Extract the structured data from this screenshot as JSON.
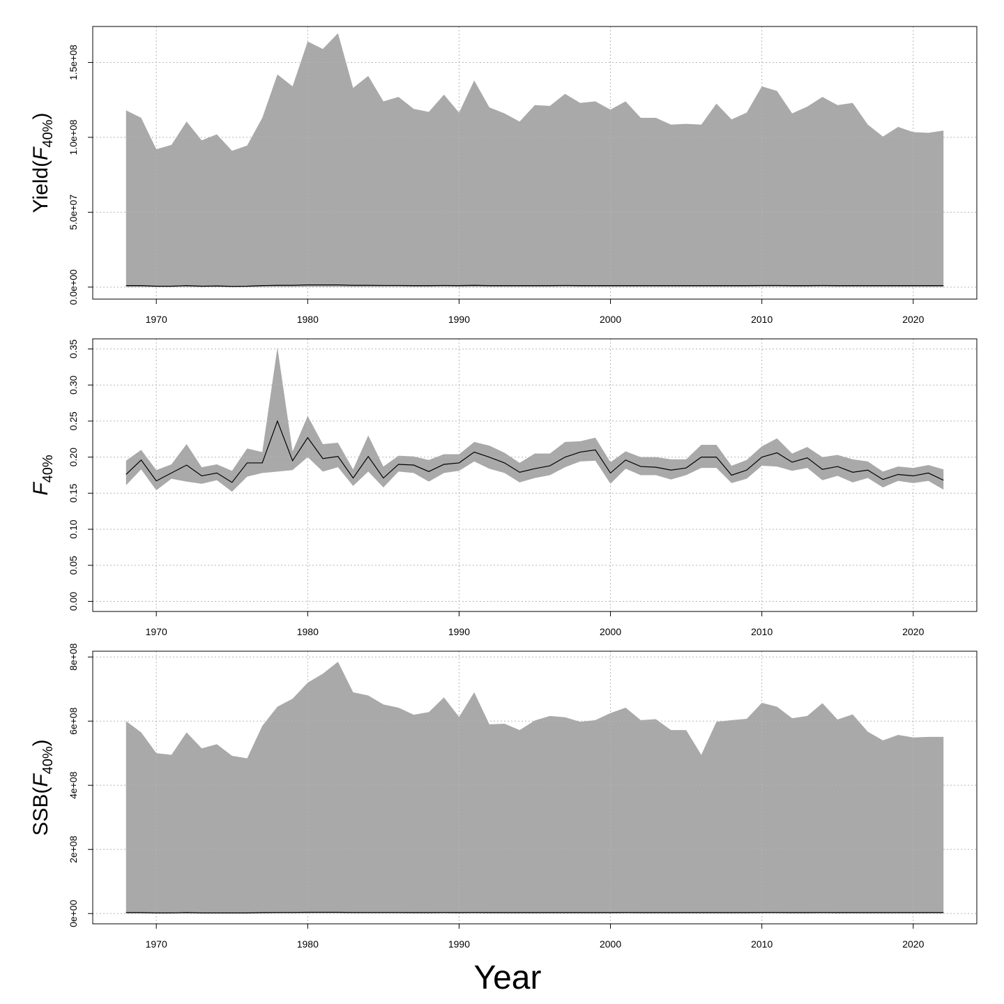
{
  "xlabel": "Year",
  "colors": {
    "band": "#a9a9a9",
    "line": "#000000",
    "grid": "#b5b5b5",
    "frame": "#000000"
  },
  "panels": [
    {
      "ylabel": {
        "prefix": "Yield(",
        "var": "F",
        "sub": "40%",
        "suffix": ")"
      },
      "ylim": [
        -8000000,
        174000000
      ],
      "yticks": [
        0,
        50000000,
        100000000,
        150000000
      ],
      "ytick_labels": [
        "0.0e+00",
        "5.0e+07",
        "1.0e+08",
        "1.5e+08"
      ]
    },
    {
      "ylabel": {
        "prefix": "",
        "var": "F",
        "sub": "40%",
        "suffix": ""
      },
      "ylim": [
        -0.014,
        0.364
      ],
      "yticks": [
        0,
        0.05,
        0.1,
        0.15,
        0.2,
        0.25,
        0.3,
        0.35
      ],
      "ytick_labels": [
        "0.00",
        "0.05",
        "0.10",
        "0.15",
        "0.20",
        "0.25",
        "0.30",
        "0.35"
      ]
    },
    {
      "ylabel": {
        "prefix": "SSB(",
        "var": "F",
        "sub": "40%",
        "suffix": ")"
      },
      "ylim": [
        -32000000,
        818000000
      ],
      "yticks": [
        0,
        200000000,
        400000000,
        600000000,
        800000000
      ],
      "ytick_labels": [
        "0e+00",
        "2e+08",
        "4e+08",
        "6e+08",
        "8e+08"
      ]
    }
  ],
  "xticks": [
    1970,
    1980,
    1990,
    2000,
    2010,
    2020
  ],
  "xtick_labels": [
    "1970",
    "1980",
    "1990",
    "2000",
    "2010",
    "2020"
  ],
  "chart_data": [
    {
      "type": "area",
      "x": [
        1968,
        1969,
        1970,
        1971,
        1972,
        1973,
        1974,
        1975,
        1976,
        1977,
        1978,
        1979,
        1980,
        1981,
        1982,
        1983,
        1984,
        1985,
        1986,
        1987,
        1988,
        1989,
        1990,
        1991,
        1992,
        1993,
        1994,
        1995,
        1996,
        1997,
        1998,
        1999,
        2000,
        2001,
        2002,
        2003,
        2004,
        2005,
        2006,
        2007,
        2008,
        2009,
        2010,
        2011,
        2012,
        2013,
        2014,
        2015,
        2016,
        2017,
        2018,
        2019,
        2020,
        2021,
        2022
      ],
      "xlim": [
        1965.8,
        2024.2
      ],
      "ylim": [
        -8000000,
        174000000
      ],
      "grid": true,
      "series": [
        {
          "role": "upper",
          "values": [
            118000000,
            113000000,
            92000000,
            95000000,
            110500000,
            98000000,
            102000000,
            91000000,
            94500000,
            113000000,
            142000000,
            134000000,
            164000000,
            159000000,
            169500000,
            133000000,
            141000000,
            124000000,
            127000000,
            119000000,
            117000000,
            128500000,
            116500000,
            138000000,
            120000000,
            116000000,
            110500000,
            121500000,
            121000000,
            129000000,
            123000000,
            124000000,
            118500000,
            124000000,
            113000000,
            113000000,
            108500000,
            109000000,
            108500000,
            122500000,
            112000000,
            116500000,
            134000000,
            131000000,
            116000000,
            120500000,
            127000000,
            121500000,
            123000000,
            108500000,
            100500000,
            107000000,
            103500000,
            103000000,
            104500000
          ]
        },
        {
          "role": "median",
          "values": [
            1000000,
            1000000,
            600000,
            600000,
            1000000,
            600000,
            800000,
            500000,
            600000,
            1000000,
            1200000,
            1200000,
            1500000,
            1500000,
            1500000,
            1200000,
            1200000,
            1100000,
            1100000,
            1000000,
            1000000,
            1100000,
            1000000,
            1200000,
            1000000,
            1000000,
            1000000,
            1000000,
            1000000,
            1100000,
            1000000,
            1000000,
            1000000,
            1000000,
            1000000,
            1000000,
            1000000,
            1000000,
            1000000,
            1000000,
            1000000,
            1000000,
            1100000,
            1100000,
            1000000,
            1000000,
            1100000,
            1000000,
            1000000,
            1000000,
            1000000,
            1000000,
            1000000,
            1000000,
            1000000
          ]
        },
        {
          "role": "lower",
          "values": [
            100000,
            100000,
            50000,
            50000,
            100000,
            50000,
            80000,
            30000,
            50000,
            100000,
            150000,
            150000,
            250000,
            250000,
            250000,
            150000,
            150000,
            150000,
            150000,
            100000,
            100000,
            150000,
            100000,
            150000,
            100000,
            100000,
            100000,
            100000,
            100000,
            150000,
            100000,
            100000,
            100000,
            100000,
            100000,
            100000,
            100000,
            100000,
            100000,
            100000,
            100000,
            100000,
            150000,
            150000,
            100000,
            100000,
            150000,
            100000,
            100000,
            100000,
            100000,
            100000,
            100000,
            100000,
            100000
          ]
        }
      ]
    },
    {
      "type": "area",
      "x": [
        1968,
        1969,
        1970,
        1971,
        1972,
        1973,
        1974,
        1975,
        1976,
        1977,
        1978,
        1979,
        1980,
        1981,
        1982,
        1983,
        1984,
        1985,
        1986,
        1987,
        1988,
        1989,
        1990,
        1991,
        1992,
        1993,
        1994,
        1995,
        1996,
        1997,
        1998,
        1999,
        2000,
        2001,
        2002,
        2003,
        2004,
        2005,
        2006,
        2007,
        2008,
        2009,
        2010,
        2011,
        2012,
        2013,
        2014,
        2015,
        2016,
        2017,
        2018,
        2019,
        2020,
        2021,
        2022
      ],
      "xlim": [
        1965.8,
        2024.2
      ],
      "ylim": [
        -0.014,
        0.364
      ],
      "grid": true,
      "series": [
        {
          "role": "upper",
          "values": [
            0.195,
            0.21,
            0.182,
            0.19,
            0.218,
            0.186,
            0.19,
            0.181,
            0.212,
            0.207,
            0.352,
            0.208,
            0.257,
            0.218,
            0.22,
            0.183,
            0.23,
            0.187,
            0.202,
            0.201,
            0.196,
            0.204,
            0.204,
            0.221,
            0.216,
            0.206,
            0.192,
            0.205,
            0.205,
            0.221,
            0.222,
            0.227,
            0.193,
            0.208,
            0.2,
            0.2,
            0.197,
            0.197,
            0.217,
            0.217,
            0.188,
            0.196,
            0.215,
            0.226,
            0.205,
            0.214,
            0.2,
            0.203,
            0.197,
            0.194,
            0.18,
            0.187,
            0.185,
            0.189,
            0.183
          ]
        },
        {
          "role": "median",
          "values": [
            0.176,
            0.196,
            0.167,
            0.178,
            0.189,
            0.174,
            0.178,
            0.165,
            0.192,
            0.192,
            0.25,
            0.195,
            0.227,
            0.198,
            0.201,
            0.171,
            0.201,
            0.171,
            0.19,
            0.189,
            0.18,
            0.19,
            0.192,
            0.207,
            0.2,
            0.192,
            0.179,
            0.184,
            0.188,
            0.2,
            0.207,
            0.21,
            0.178,
            0.196,
            0.187,
            0.186,
            0.182,
            0.185,
            0.2,
            0.2,
            0.175,
            0.182,
            0.2,
            0.206,
            0.193,
            0.199,
            0.183,
            0.187,
            0.179,
            0.182,
            0.169,
            0.176,
            0.174,
            0.178,
            0.168
          ]
        },
        {
          "role": "lower",
          "values": [
            0.161,
            0.183,
            0.154,
            0.17,
            0.166,
            0.163,
            0.168,
            0.152,
            0.173,
            0.178,
            0.18,
            0.182,
            0.2,
            0.18,
            0.186,
            0.16,
            0.18,
            0.158,
            0.18,
            0.178,
            0.166,
            0.178,
            0.181,
            0.194,
            0.184,
            0.178,
            0.165,
            0.171,
            0.175,
            0.186,
            0.194,
            0.195,
            0.163,
            0.184,
            0.175,
            0.175,
            0.169,
            0.175,
            0.185,
            0.185,
            0.164,
            0.17,
            0.188,
            0.187,
            0.181,
            0.185,
            0.168,
            0.174,
            0.165,
            0.171,
            0.158,
            0.167,
            0.164,
            0.167,
            0.155
          ]
        }
      ]
    },
    {
      "type": "area",
      "x": [
        1968,
        1969,
        1970,
        1971,
        1972,
        1973,
        1974,
        1975,
        1976,
        1977,
        1978,
        1979,
        1980,
        1981,
        1982,
        1983,
        1984,
        1985,
        1986,
        1987,
        1988,
        1989,
        1990,
        1991,
        1992,
        1993,
        1994,
        1995,
        1996,
        1997,
        1998,
        1999,
        2000,
        2001,
        2002,
        2003,
        2004,
        2005,
        2006,
        2007,
        2008,
        2009,
        2010,
        2011,
        2012,
        2013,
        2014,
        2015,
        2016,
        2017,
        2018,
        2019,
        2020,
        2021,
        2022
      ],
      "xlim": [
        1965.8,
        2024.2
      ],
      "ylim": [
        -32000000,
        818000000
      ],
      "grid": true,
      "series": [
        {
          "role": "upper",
          "values": [
            600000000,
            565000000,
            500000000,
            495000000,
            565000000,
            515000000,
            528000000,
            492000000,
            484000000,
            585000000,
            645000000,
            670000000,
            720000000,
            748000000,
            785000000,
            690000000,
            680000000,
            652000000,
            642000000,
            620000000,
            628000000,
            674000000,
            613000000,
            690000000,
            590000000,
            592000000,
            572000000,
            602000000,
            616000000,
            612000000,
            598000000,
            603000000,
            625000000,
            642000000,
            603000000,
            606000000,
            572000000,
            572000000,
            495000000,
            598000000,
            603000000,
            607000000,
            657000000,
            645000000,
            609000000,
            616000000,
            656000000,
            605000000,
            621000000,
            567000000,
            540000000,
            557000000,
            549000000,
            551000000,
            551000000
          ]
        },
        {
          "role": "median",
          "values": [
            3000000,
            3000000,
            2000000,
            2000000,
            3000000,
            2000000,
            2000000,
            2000000,
            2000000,
            3000000,
            3500000,
            3500000,
            4000000,
            4000000,
            4000000,
            3500000,
            3500000,
            3500000,
            3500000,
            3000000,
            3000000,
            3500000,
            3000000,
            3500000,
            3000000,
            3000000,
            3000000,
            3000000,
            3000000,
            3000000,
            3000000,
            3000000,
            3000000,
            3500000,
            3000000,
            3000000,
            3000000,
            3000000,
            3000000,
            3000000,
            3000000,
            3000000,
            3500000,
            3500000,
            3000000,
            3000000,
            3500000,
            3000000,
            3000000,
            3000000,
            3000000,
            3000000,
            3000000,
            3000000,
            3000000
          ]
        },
        {
          "role": "lower",
          "values": [
            500000,
            500000,
            400000,
            400000,
            500000,
            400000,
            400000,
            400000,
            400000,
            500000,
            600000,
            600000,
            700000,
            700000,
            700000,
            600000,
            600000,
            600000,
            600000,
            500000,
            500000,
            600000,
            500000,
            600000,
            500000,
            500000,
            500000,
            500000,
            500000,
            500000,
            500000,
            500000,
            500000,
            600000,
            500000,
            500000,
            500000,
            500000,
            500000,
            500000,
            500000,
            500000,
            600000,
            600000,
            500000,
            500000,
            600000,
            500000,
            500000,
            500000,
            500000,
            500000,
            500000,
            500000,
            500000
          ]
        }
      ]
    }
  ]
}
